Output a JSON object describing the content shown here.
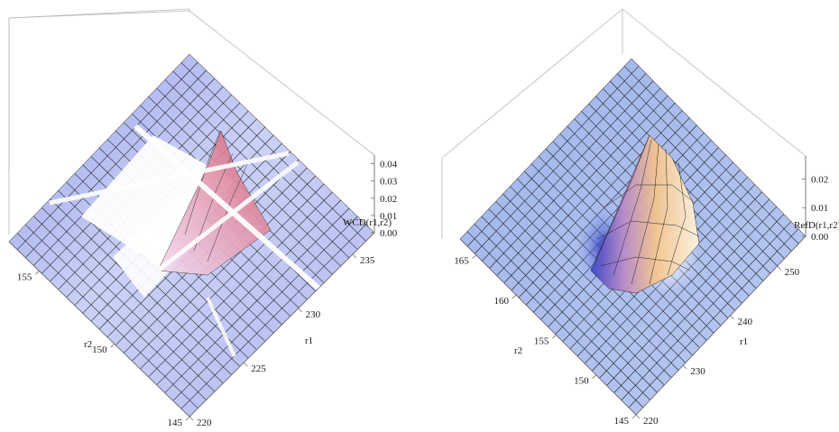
{
  "chart_data": [
    {
      "type": "surface3d",
      "title": "",
      "zlabel": "WCD(r1,r2)",
      "xlabel": "r1",
      "ylabel": "r2",
      "x_ticks": [
        "220",
        "225",
        "230",
        "235"
      ],
      "y_ticks": [
        "145",
        "150",
        "155"
      ],
      "z_ticks": [
        "0.00",
        "0.01",
        "0.02",
        "0.03",
        "0.04"
      ],
      "xlim": [
        220,
        237
      ],
      "ylim": [
        145,
        157
      ],
      "zlim": [
        0,
        0.045
      ],
      "grid_points": {
        "r1": [
          220,
          224,
          228,
          232,
          236
        ],
        "r2": [
          145,
          148,
          151,
          154,
          157
        ],
        "z": [
          [
            0.0,
            0.0,
            0.001,
            0.002,
            0.002
          ],
          [
            0.0,
            0.001,
            0.008,
            0.006,
            0.003
          ],
          [
            0.001,
            0.004,
            0.03,
            0.012,
            0.005
          ],
          [
            0.0,
            0.002,
            0.01,
            0.008,
            0.006
          ],
          [
            0.0,
            0.001,
            0.004,
            0.006,
            0.009
          ]
        ]
      },
      "peak": {
        "r1": 229,
        "r2": 151,
        "z": 0.04
      },
      "colors": {
        "surface_low": "#b4bff5",
        "surface_mid": "#e9c0ef",
        "surface_high": "#d2676f"
      }
    },
    {
      "type": "surface3d",
      "title": "",
      "zlabel": "RefD(r1,r2)",
      "xlabel": "r1",
      "ylabel": "r2",
      "x_ticks": [
        "220",
        "230",
        "240",
        "250"
      ],
      "y_ticks": [
        "145",
        "150",
        "155",
        "160",
        "165"
      ],
      "z_ticks": [
        "0.00",
        "0.01",
        "0.02"
      ],
      "xlim": [
        220,
        256
      ],
      "ylim": [
        145,
        167
      ],
      "zlim": [
        0,
        0.028
      ],
      "grid_points": {
        "r1": [
          220,
          228,
          236,
          244,
          252
        ],
        "r2": [
          145,
          150,
          155,
          160,
          165
        ],
        "z": [
          [
            0.0,
            0.0,
            0.0,
            0.0,
            0.0
          ],
          [
            0.0,
            0.001,
            0.004,
            0.001,
            0.0
          ],
          [
            0.0,
            0.004,
            0.026,
            0.006,
            0.0
          ],
          [
            0.0,
            0.001,
            0.005,
            0.002,
            0.0
          ],
          [
            0.0,
            0.0,
            0.0,
            0.0,
            0.0
          ]
        ]
      },
      "peak": {
        "r1": 238,
        "r2": 155,
        "z": 0.026
      },
      "colors": {
        "surface_low": "#a8bdf2",
        "surface_mid": "#f0c9a6",
        "surface_high": "#fff0c8"
      }
    }
  ]
}
